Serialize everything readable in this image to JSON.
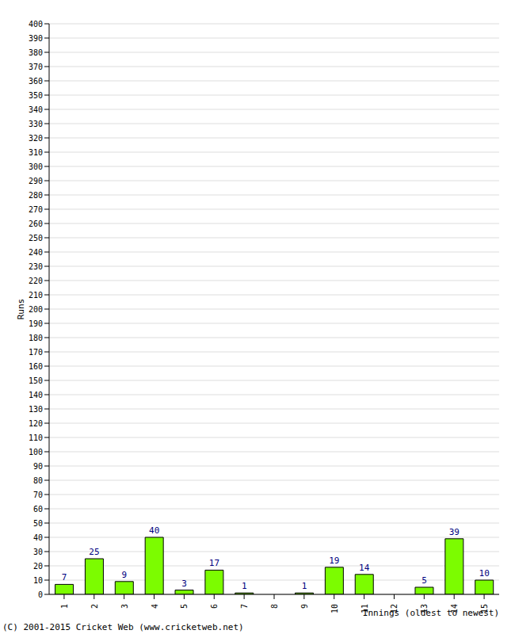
{
  "chart_data": {
    "type": "bar",
    "categories": [
      "1",
      "2",
      "3",
      "4",
      "5",
      "6",
      "7",
      "8",
      "9",
      "10",
      "11",
      "12",
      "13",
      "14",
      "15"
    ],
    "values": [
      7,
      25,
      9,
      40,
      3,
      17,
      1,
      0,
      1,
      19,
      14,
      0,
      5,
      39,
      10
    ],
    "color": "#7cfc00",
    "ylim": [
      0,
      400
    ],
    "yticks": [
      0,
      10,
      20,
      30,
      40,
      50,
      60,
      70,
      80,
      90,
      100,
      110,
      120,
      130,
      140,
      150,
      160,
      170,
      180,
      190,
      200,
      210,
      220,
      230,
      240,
      250,
      260,
      270,
      280,
      290,
      300,
      310,
      320,
      330,
      340,
      350,
      360,
      370,
      380,
      390,
      400
    ],
    "grid": true,
    "data_labels": true,
    "y_label": "Runs",
    "x_label": "Innings (oldest to newest)",
    "footer": "(C) 2001-2015 Cricket Web (www.cricketweb.net)"
  }
}
